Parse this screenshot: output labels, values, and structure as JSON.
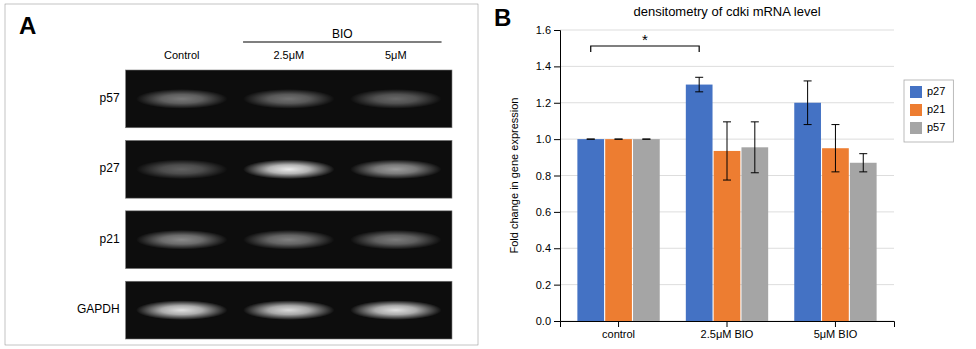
{
  "chart_data": [
    {
      "type": "heatmap",
      "annotations": [
        "A",
        "BIO"
      ],
      "categories": [
        "Control",
        "2.5μM",
        "5μM"
      ],
      "rows": [
        "p57",
        "p27",
        "p21",
        "GAPDH"
      ],
      "cells": [
        [
          0.45,
          0.42,
          0.38
        ],
        [
          0.35,
          0.92,
          0.6
        ],
        [
          0.52,
          0.48,
          0.46
        ],
        [
          0.88,
          0.85,
          0.88
        ]
      ]
    },
    {
      "type": "bar",
      "title": "densitometry of cdki mRNA level",
      "ylabel": "Fold change in gene expression",
      "annotations": [
        "B",
        "*"
      ],
      "categories": [
        "control",
        "2.5μM BIO",
        "5μM BIO"
      ],
      "series": [
        {
          "name": "p27",
          "color": "#4472C4",
          "values": [
            1.0,
            1.3,
            1.2
          ],
          "errors": [
            0.0,
            0.04,
            0.12
          ]
        },
        {
          "name": "p21",
          "color": "#ED7D31",
          "values": [
            1.0,
            0.935,
            0.95
          ],
          "errors": [
            0.0,
            0.16,
            0.13
          ]
        },
        {
          "name": "p57",
          "color": "#A5A5A5",
          "values": [
            1.0,
            0.955,
            0.87
          ],
          "errors": [
            0.0,
            0.14,
            0.05
          ]
        }
      ],
      "ylim": [
        0,
        1.6
      ],
      "yticks": [
        {
          "value": 0,
          "label": "0.0"
        },
        0.2,
        0.4,
        0.6,
        0.8,
        {
          "value": 1.0,
          "label": "1.0"
        },
        1.2,
        1.4,
        1.6
      ],
      "grid": true,
      "legend": "right"
    }
  ]
}
